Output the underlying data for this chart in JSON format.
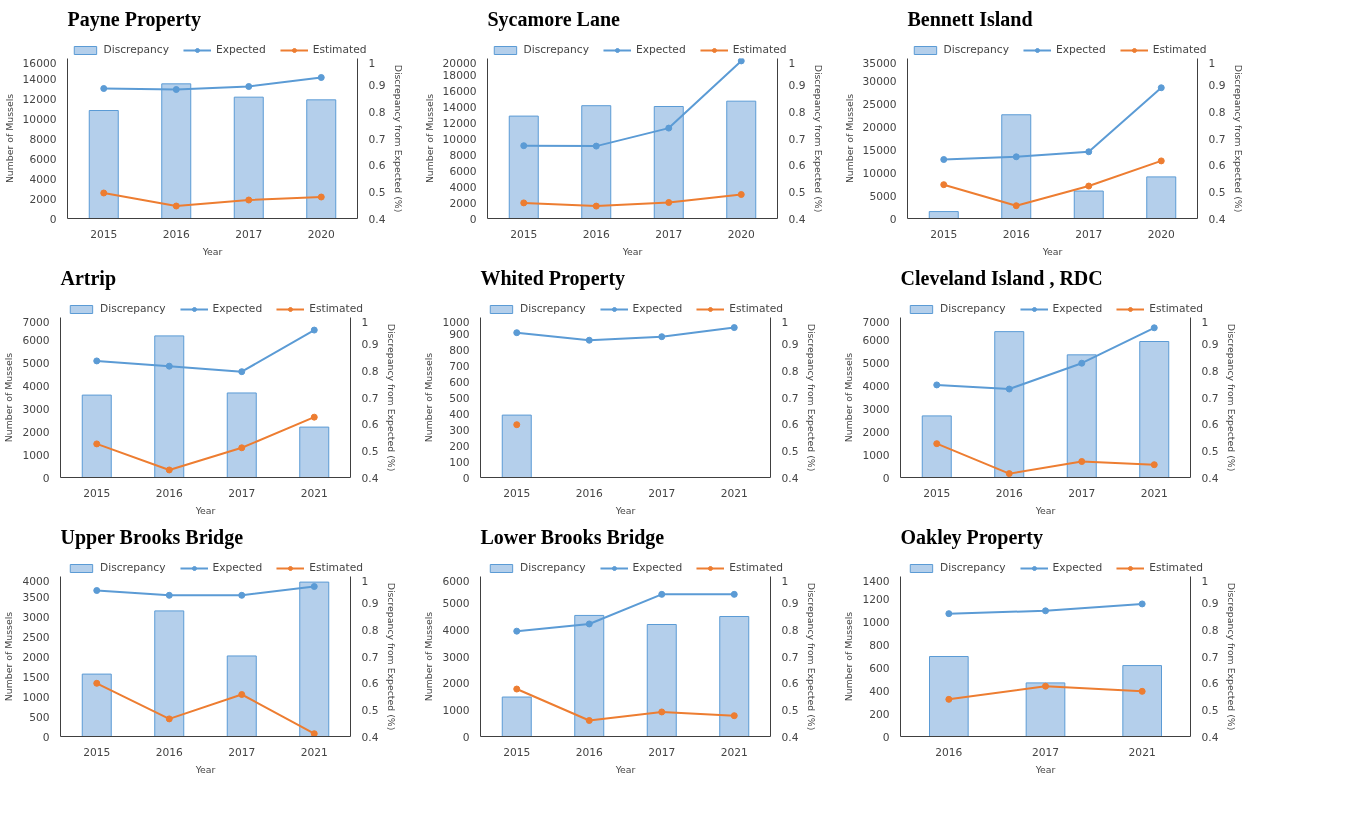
{
  "chart_data": [
    {
      "type": "bar",
      "title": "Payne Property",
      "xlabel": "Year",
      "ylabel": "Number of Mussels",
      "y2label": "Discrepancy from Expected (%)",
      "categories": [
        "2015",
        "2016",
        "2017",
        "2020"
      ],
      "ylim": [
        0,
        16000
      ],
      "yticks": [
        0,
        2000,
        4000,
        6000,
        8000,
        10000,
        12000,
        14000,
        16000
      ],
      "y2lim": [
        0.4,
        1
      ],
      "y2ticks": [
        0.4,
        0.5,
        0.6,
        0.7,
        0.8,
        0.9,
        1
      ],
      "legend": "top",
      "marker": "circle",
      "series": [
        {
          "name": "Discrepancy",
          "type": "bar",
          "axis": "y2",
          "color": "#b4cfeb",
          "values": [
            0.805,
            0.905,
            0.855,
            0.845
          ]
        },
        {
          "name": "Expected",
          "type": "line",
          "color": "#5b9bd5",
          "values": [
            13000,
            12900,
            13200,
            14100
          ]
        },
        {
          "name": "Estimated",
          "type": "line",
          "color": "#ed7d31",
          "values": [
            2550,
            1250,
            1850,
            2150
          ]
        }
      ]
    },
    {
      "type": "bar",
      "title": "Sycamore Lane",
      "xlabel": "Year",
      "ylabel": "Number of Mussels",
      "y2label": "Discrepancy from Expected (%)",
      "categories": [
        "2015",
        "2016",
        "2017",
        "2020"
      ],
      "ylim": [
        0,
        20000
      ],
      "yticks": [
        0,
        2000,
        4000,
        6000,
        8000,
        10000,
        12000,
        14000,
        16000,
        18000,
        20000
      ],
      "y2lim": [
        0.4,
        1
      ],
      "y2ticks": [
        0.4,
        0.5,
        0.6,
        0.7,
        0.8,
        0.9,
        1
      ],
      "legend": "top",
      "marker": "circle",
      "series": [
        {
          "name": "Discrepancy",
          "type": "bar",
          "axis": "y2",
          "color": "#b4cfeb",
          "values": [
            0.784,
            0.823,
            0.82,
            0.84
          ]
        },
        {
          "name": "Expected",
          "type": "line",
          "color": "#5b9bd5",
          "values": [
            9100,
            9050,
            11300,
            19700
          ]
        },
        {
          "name": "Estimated",
          "type": "line",
          "color": "#ed7d31",
          "values": [
            1950,
            1550,
            2000,
            3000
          ]
        }
      ]
    },
    {
      "type": "bar",
      "title": "Bennett Island",
      "xlabel": "Year",
      "ylabel": "Number of Mussels",
      "y2label": "Discrepancy from Expected (%)",
      "categories": [
        "2015",
        "2016",
        "2017",
        "2020"
      ],
      "ylim": [
        0,
        35000
      ],
      "yticks": [
        0,
        5000,
        10000,
        15000,
        20000,
        25000,
        30000,
        35000
      ],
      "y2lim": [
        0.4,
        1
      ],
      "y2ticks": [
        0.4,
        0.5,
        0.6,
        0.7,
        0.8,
        0.9,
        1
      ],
      "legend": "top",
      "marker": "circle",
      "series": [
        {
          "name": "Discrepancy",
          "type": "bar",
          "axis": "y2",
          "color": "#b4cfeb",
          "values": [
            0.426,
            0.789,
            0.503,
            0.556
          ]
        },
        {
          "name": "Expected",
          "type": "line",
          "color": "#5b9bd5",
          "values": [
            12900,
            13500,
            14600,
            28600
          ]
        },
        {
          "name": "Estimated",
          "type": "line",
          "color": "#ed7d31",
          "values": [
            7400,
            2800,
            7100,
            12600
          ]
        }
      ]
    },
    {
      "type": "bar",
      "title": "Artrip",
      "xlabel": "Year",
      "ylabel": "Number of Mussels",
      "y2label": "Discrepancy from Expected (%)",
      "categories": [
        "2015",
        "2016",
        "2017",
        "2021"
      ],
      "ylim": [
        0,
        7000
      ],
      "yticks": [
        0,
        1000,
        2000,
        3000,
        4000,
        5000,
        6000,
        7000
      ],
      "y2lim": [
        0.4,
        1
      ],
      "y2ticks": [
        0.4,
        0.5,
        0.6,
        0.7,
        0.8,
        0.9,
        1
      ],
      "legend": "top",
      "marker": "circle",
      "series": [
        {
          "name": "Discrepancy",
          "type": "bar",
          "axis": "y2",
          "color": "#b4cfeb",
          "values": [
            0.709,
            0.931,
            0.717,
            0.589
          ]
        },
        {
          "name": "Expected",
          "type": "line",
          "color": "#5b9bd5",
          "values": [
            5100,
            4870,
            4630,
            6450
          ]
        },
        {
          "name": "Estimated",
          "type": "line",
          "color": "#ed7d31",
          "values": [
            1470,
            330,
            1300,
            2640
          ]
        }
      ]
    },
    {
      "type": "bar",
      "title": "Whited Property",
      "xlabel": "Year",
      "ylabel": "Number of Mussels",
      "y2label": "Discrepancy from Expected (%)",
      "categories": [
        "2015",
        "2016",
        "2017",
        "2021"
      ],
      "ylim": [
        0,
        1000
      ],
      "yticks": [
        0,
        100,
        200,
        300,
        400,
        500,
        600,
        700,
        800,
        900,
        1000
      ],
      "y2lim": [
        0.4,
        1
      ],
      "y2ticks": [
        0.4,
        0.5,
        0.6,
        0.7,
        0.8,
        0.9,
        1
      ],
      "legend": "top",
      "marker": "circle",
      "series": [
        {
          "name": "Discrepancy",
          "type": "bar",
          "axis": "y2",
          "color": "#b4cfeb",
          "values": [
            0.634,
            null,
            null,
            null
          ]
        },
        {
          "name": "Expected",
          "type": "line",
          "color": "#5b9bd5",
          "values": [
            905,
            858,
            880,
            937
          ]
        },
        {
          "name": "Estimated",
          "type": "line",
          "color": "#ed7d31",
          "values": [
            330,
            null,
            null,
            null
          ]
        }
      ]
    },
    {
      "type": "bar",
      "title": "Cleveland Island , RDC",
      "xlabel": "Year",
      "ylabel": "Number of Mussels",
      "y2label": "Discrepancy from Expected (%)",
      "categories": [
        "2015",
        "2016",
        "2017",
        "2021"
      ],
      "ylim": [
        0,
        7000
      ],
      "yticks": [
        0,
        1000,
        2000,
        3000,
        4000,
        5000,
        6000,
        7000
      ],
      "y2lim": [
        0.4,
        1
      ],
      "y2ticks": [
        0.4,
        0.5,
        0.6,
        0.7,
        0.8,
        0.9,
        1
      ],
      "legend": "top",
      "marker": "circle",
      "series": [
        {
          "name": "Discrepancy",
          "type": "bar",
          "axis": "y2",
          "color": "#b4cfeb",
          "values": [
            0.631,
            0.947,
            0.86,
            0.91
          ]
        },
        {
          "name": "Expected",
          "type": "line",
          "color": "#5b9bd5",
          "values": [
            4050,
            3870,
            5000,
            6550
          ]
        },
        {
          "name": "Estimated",
          "type": "line",
          "color": "#ed7d31",
          "values": [
            1480,
            170,
            700,
            560
          ]
        }
      ]
    },
    {
      "type": "bar",
      "title": "Upper Brooks Bridge",
      "xlabel": "Year",
      "ylabel": "Number of Mussels",
      "y2label": "Discrepancy from Expected (%)",
      "categories": [
        "2015",
        "2016",
        "2017",
        "2021"
      ],
      "ylim": [
        0,
        4000
      ],
      "yticks": [
        0,
        500,
        1000,
        1500,
        2000,
        2500,
        3000,
        3500,
        4000
      ],
      "y2lim": [
        0.4,
        1
      ],
      "y2ticks": [
        0.4,
        0.5,
        0.6,
        0.7,
        0.8,
        0.9,
        1
      ],
      "legend": "top",
      "marker": "circle",
      "series": [
        {
          "name": "Discrepancy",
          "type": "bar",
          "axis": "y2",
          "color": "#b4cfeb",
          "values": [
            0.634,
            0.871,
            0.702,
            0.979
          ]
        },
        {
          "name": "Expected",
          "type": "line",
          "color": "#5b9bd5",
          "values": [
            3650,
            3530,
            3530,
            3750
          ]
        },
        {
          "name": "Estimated",
          "type": "line",
          "color": "#ed7d31",
          "values": [
            1330,
            440,
            1050,
            70
          ]
        }
      ]
    },
    {
      "type": "bar",
      "title": "Lower Brooks Bridge",
      "xlabel": "Year",
      "ylabel": "Number of Mussels",
      "y2label": "Discrepancy from Expected (%)",
      "categories": [
        "2015",
        "2016",
        "2017",
        "2021"
      ],
      "ylim": [
        0,
        6000
      ],
      "yticks": [
        0,
        1000,
        2000,
        3000,
        4000,
        5000,
        6000
      ],
      "y2lim": [
        0.4,
        1
      ],
      "y2ticks": [
        0.4,
        0.5,
        0.6,
        0.7,
        0.8,
        0.9,
        1
      ],
      "legend": "top",
      "marker": "circle",
      "series": [
        {
          "name": "Discrepancy",
          "type": "bar",
          "axis": "y2",
          "color": "#b4cfeb",
          "values": [
            0.548,
            0.854,
            0.82,
            0.85
          ]
        },
        {
          "name": "Expected",
          "type": "line",
          "color": "#5b9bd5",
          "values": [
            3950,
            4220,
            5330,
            5330
          ]
        },
        {
          "name": "Estimated",
          "type": "line",
          "color": "#ed7d31",
          "values": [
            1780,
            600,
            920,
            780
          ]
        }
      ]
    },
    {
      "type": "bar",
      "title": "Oakley Property",
      "xlabel": "Year",
      "ylabel": "Number of Mussels",
      "y2label": "Discrepancy from Expected (%)",
      "categories": [
        "2016",
        "2017",
        "2021"
      ],
      "ylim": [
        0,
        1400
      ],
      "yticks": [
        0,
        200,
        400,
        600,
        800,
        1000,
        1200,
        1400
      ],
      "y2lim": [
        0.4,
        1
      ],
      "y2ticks": [
        0.4,
        0.5,
        0.6,
        0.7,
        0.8,
        0.9,
        1
      ],
      "legend": "top",
      "marker": "circle",
      "series": [
        {
          "name": "Discrepancy",
          "type": "bar",
          "axis": "y2",
          "color": "#b4cfeb",
          "values": [
            0.7,
            0.601,
            0.666
          ]
        },
        {
          "name": "Expected",
          "type": "line",
          "color": "#5b9bd5",
          "values": [
            1075,
            1100,
            1160
          ]
        },
        {
          "name": "Estimated",
          "type": "line",
          "color": "#ed7d31",
          "values": [
            325,
            440,
            395
          ]
        }
      ]
    }
  ]
}
